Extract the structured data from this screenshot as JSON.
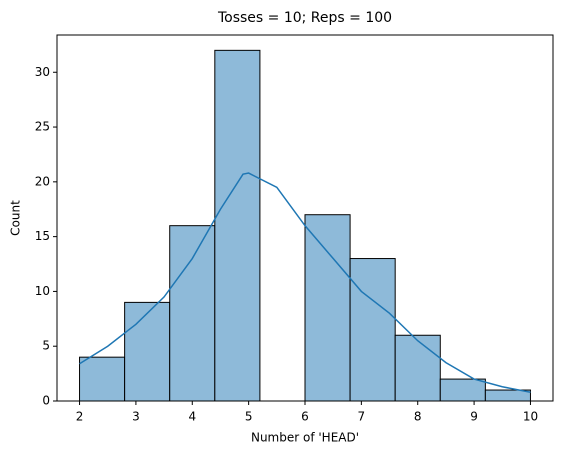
{
  "chart_data": {
    "type": "histogram",
    "title": "Tosses = 10; Reps = 100",
    "xlabel": "Number of 'HEAD'",
    "ylabel": "Count",
    "bins": [
      2,
      2.8,
      3.6,
      4.4,
      5.2,
      6,
      6.8,
      7.6,
      8.4,
      9.2,
      10
    ],
    "values": [
      4,
      9,
      16,
      32,
      0,
      17,
      13,
      6,
      2,
      1
    ],
    "color": "#8ebad9",
    "edgecolor": "#000000",
    "kde": {
      "color": "#1f77b4",
      "x": [
        2,
        2.5,
        3,
        3.5,
        4,
        4.5,
        4.9,
        5,
        5.5,
        6,
        6.5,
        7,
        7.5,
        8,
        8.5,
        9,
        9.5,
        10
      ],
      "values": [
        3.4,
        5,
        7,
        9.5,
        13,
        17.5,
        20.7,
        20.8,
        19.5,
        16,
        13,
        10,
        8,
        5.5,
        3.5,
        2,
        1.3,
        0.8
      ]
    },
    "xlim": [
      1.6,
      10.4
    ],
    "xticks": [
      2,
      3,
      4,
      5,
      6,
      7,
      8,
      9,
      10
    ],
    "ylim": [
      0,
      33.4
    ],
    "yticks": [
      0,
      5,
      10,
      15,
      20,
      25,
      30
    ]
  }
}
